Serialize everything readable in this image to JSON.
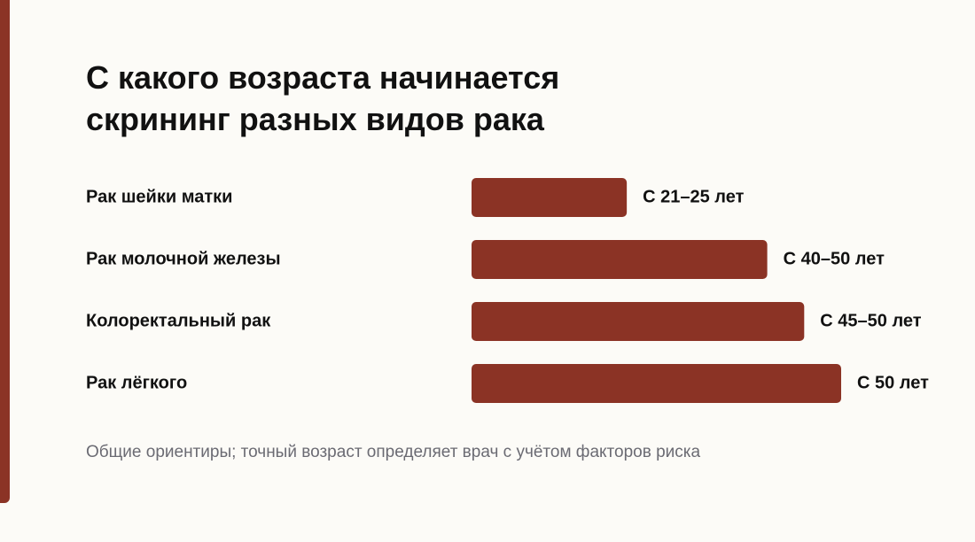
{
  "chart_data": {
    "type": "bar",
    "orientation": "horizontal",
    "title": "С какого возраста начинается скрининг разных видов рака",
    "categories": [
      "Рак шейки матки",
      "Рак молочной железы",
      "Колоректальный рак",
      "Рак лёгкого"
    ],
    "values": [
      21,
      40,
      45,
      50
    ],
    "value_labels": [
      "С 21–25 лет",
      "С 40–50 лет",
      "С 45–50 лет",
      "С 50 лет"
    ],
    "color": "#8b3325",
    "note": "Общие ориентиры; точный возраст определяет врач с учётом факторов риска"
  }
}
